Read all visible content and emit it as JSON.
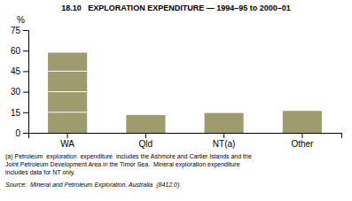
{
  "chart_data": {
    "type": "bar",
    "title": "18.10   EXPLORATION EXPENDITURE — 1994–95 to 2000–01",
    "categories": [
      "WA",
      "Qld",
      "NT(a)",
      "Other"
    ],
    "values": [
      58.5,
      13.0,
      14.5,
      16.0
    ],
    "color": "#9e9b6e",
    "bar_lines": [
      15,
      30,
      45
    ],
    "ylim": [
      0,
      75
    ],
    "yticks": [
      0,
      15,
      30,
      45,
      60,
      75
    ],
    "ylabel": "%",
    "grid": false,
    "footnotes": [
      "(a) Petroleum  exploration  expenditure  includes the Ashmore and Cartier Islands and the",
      "Joint Petroleum Development Area in the Timor Sea.  Mineral exploration expenditure",
      "includes data for NT only."
    ],
    "source": "Source:  Mineral and Petroleum Exploration, Australia  (8412.0)."
  }
}
